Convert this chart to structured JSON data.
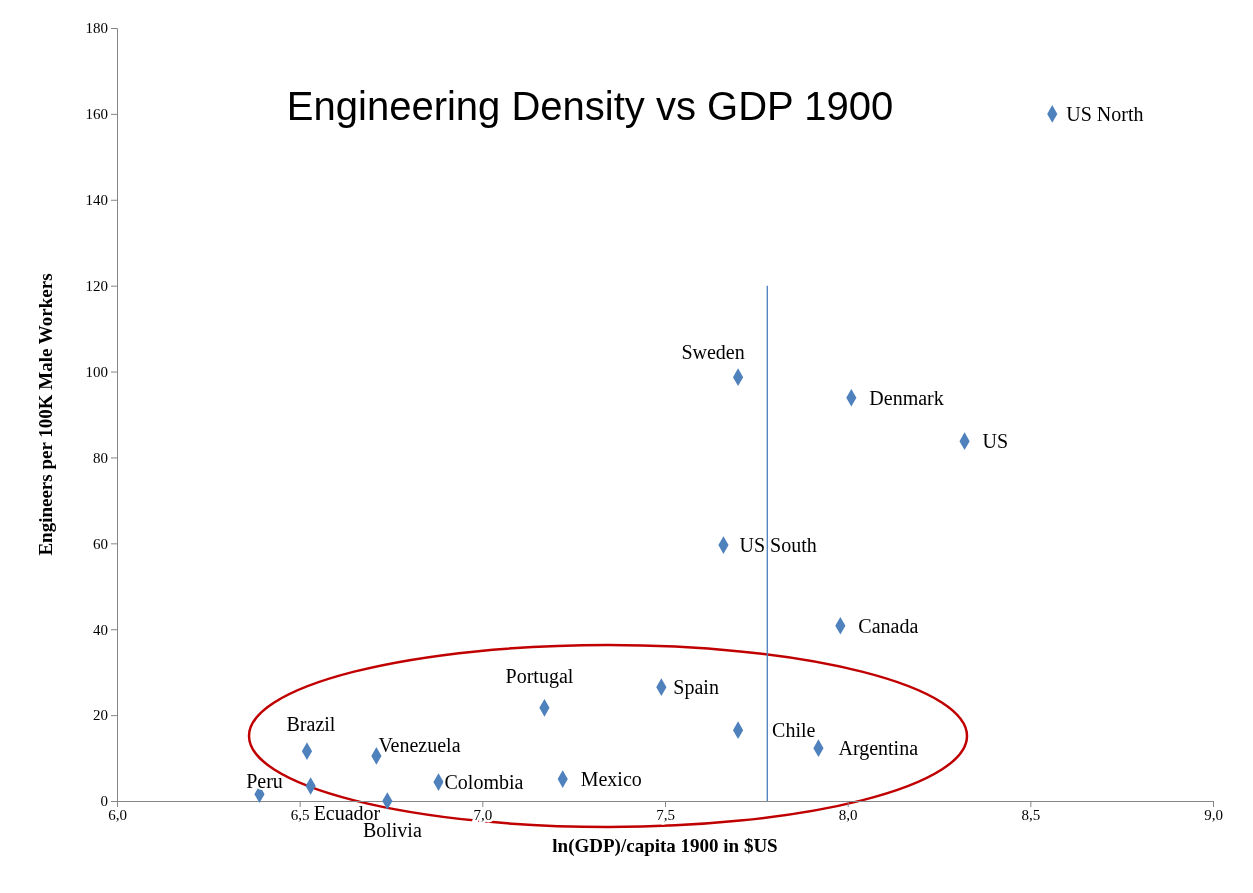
{
  "chart_data": {
    "type": "scatter",
    "title": "Engineering Density vs GDP 1900",
    "xlabel": "ln(GDP)/capita 1900 in  $US",
    "ylabel": "Engineers per 100K Male Workers",
    "xlim": [
      6,
      9
    ],
    "xticks": [
      {
        "value": 6,
        "label": "6,0"
      },
      {
        "value": 6.5,
        "label": "6,5"
      },
      {
        "value": 7,
        "label": "7,0"
      },
      {
        "value": 7.5,
        "label": "7,5"
      },
      {
        "value": 8,
        "label": "8,0"
      },
      {
        "value": 8.5,
        "label": "8,5"
      },
      {
        "value": 9,
        "label": "9,0"
      }
    ],
    "ylim": [
      0,
      180
    ],
    "yticks": [
      0,
      20,
      40,
      60,
      80,
      100,
      120,
      140,
      160,
      180
    ],
    "grid": false,
    "series": [
      {
        "marker": "diamond",
        "color": "#4f81bd",
        "x": [
          8.56,
          7.7,
          8.01,
          8.32,
          7.66,
          7.98,
          7.49,
          7.17,
          7.7,
          7.92,
          6.52,
          6.71,
          6.88,
          7.22,
          6.53,
          6.39,
          6.74
        ],
        "values": [
          160,
          98.7,
          93.9,
          83.8,
          59.6,
          40.8,
          26.5,
          21.7,
          16.5,
          12.3,
          11.6,
          10.5,
          4.4,
          5.1,
          3.5,
          1.6,
          0
        ]
      },
      {
        "type": "line",
        "color": "#4a7ebb",
        "x": [
          7.78,
          7.78
        ],
        "values": [
          0,
          120
        ]
      }
    ],
    "annotations": [
      {
        "text": "US North",
        "x": 8.56,
        "y": 160
      },
      {
        "text": "Sweden",
        "x": 7.7,
        "y": 98.7
      },
      {
        "text": "Denmark",
        "x": 8.01,
        "y": 93.9
      },
      {
        "text": "US",
        "x": 8.32,
        "y": 83.8
      },
      {
        "text": "US South",
        "x": 7.66,
        "y": 59.6
      },
      {
        "text": "Canada",
        "x": 7.98,
        "y": 40.8
      },
      {
        "text": "Spain",
        "x": 7.49,
        "y": 26.5
      },
      {
        "text": "Portugal",
        "x": 7.17,
        "y": 21.7
      },
      {
        "text": "Chile",
        "x": 7.7,
        "y": 16.5
      },
      {
        "text": "Argentina",
        "x": 7.92,
        "y": 12.3
      },
      {
        "text": "Brazil",
        "x": 6.52,
        "y": 11.6
      },
      {
        "text": "Venezuela",
        "x": 6.71,
        "y": 10.5
      },
      {
        "text": "Colombia",
        "x": 6.88,
        "y": 4.4
      },
      {
        "text": "Mexico",
        "x": 7.22,
        "y": 5.1
      },
      {
        "text": "Ecuador",
        "x": 6.53,
        "y": 3.5
      },
      {
        "text": "Peru",
        "x": 6.39,
        "y": 1.6
      },
      {
        "text": "Bolivia",
        "x": 6.74,
        "y": 0
      }
    ]
  }
}
